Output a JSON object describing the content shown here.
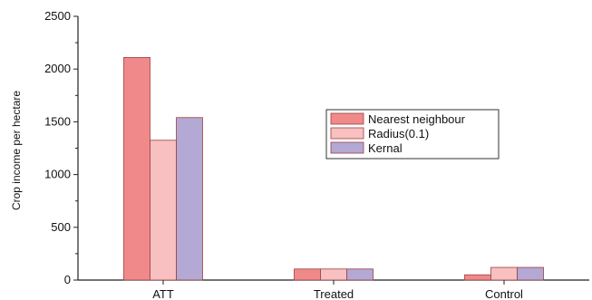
{
  "chart_data": {
    "type": "bar",
    "title": "",
    "xlabel": "",
    "ylabel": "Crop income per hectare",
    "categories": [
      "ATT",
      "Treated",
      "Control"
    ],
    "series": [
      {
        "name": "Nearest neighbour",
        "values": [
          2110,
          105,
          50
        ],
        "color": "#f08a8a"
      },
      {
        "name": "Radius(0.1)",
        "values": [
          1325,
          105,
          120
        ],
        "color": "#f8c0c0"
      },
      {
        "name": "Kernal",
        "values": [
          1540,
          105,
          120
        ],
        "color": "#b4a8d4"
      }
    ],
    "ylim": [
      0,
      2500
    ],
    "yticks": [
      0,
      500,
      1000,
      1500,
      2000,
      2500
    ],
    "grid": false,
    "legend_position": "center-right"
  }
}
